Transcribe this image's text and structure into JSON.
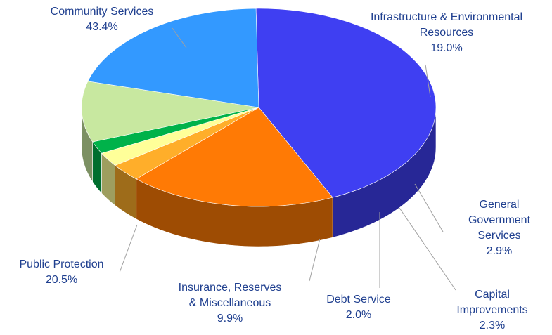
{
  "chart_data": {
    "type": "pie",
    "title": "",
    "slices": [
      {
        "label": "Community Services",
        "value": 43.4,
        "display": "43.4%",
        "color": "#3f3ff2"
      },
      {
        "label": "Infrastructure & Environmental Resources",
        "display_lines": [
          "Infrastructure & Environmental",
          "Resources"
        ],
        "value": 19.0,
        "display": "19.0%",
        "color": "#ff7a05"
      },
      {
        "label": "General Government Services",
        "display_lines": [
          "General",
          "Government",
          "Services"
        ],
        "value": 2.9,
        "display": "2.9%",
        "color": "#ffae2a"
      },
      {
        "label": "Capital Improvements",
        "display_lines": [
          "Capital",
          "Improvements"
        ],
        "value": 2.3,
        "display": "2.3%",
        "color": "#ffff99"
      },
      {
        "label": "Debt Service",
        "value": 2.0,
        "display": "2.0%",
        "color": "#00b24a"
      },
      {
        "label": "Insurance, Reserves & Miscellaneous",
        "display_lines": [
          "Insurance, Reserves",
          "& Miscellaneous"
        ],
        "value": 9.9,
        "display": "9.9%",
        "color": "#c8e8a0"
      },
      {
        "label": "Public Protection",
        "value": 20.5,
        "display": "20.5%",
        "color": "#3399ff"
      }
    ],
    "style": "3d-exploded-pie",
    "legend": "none"
  }
}
